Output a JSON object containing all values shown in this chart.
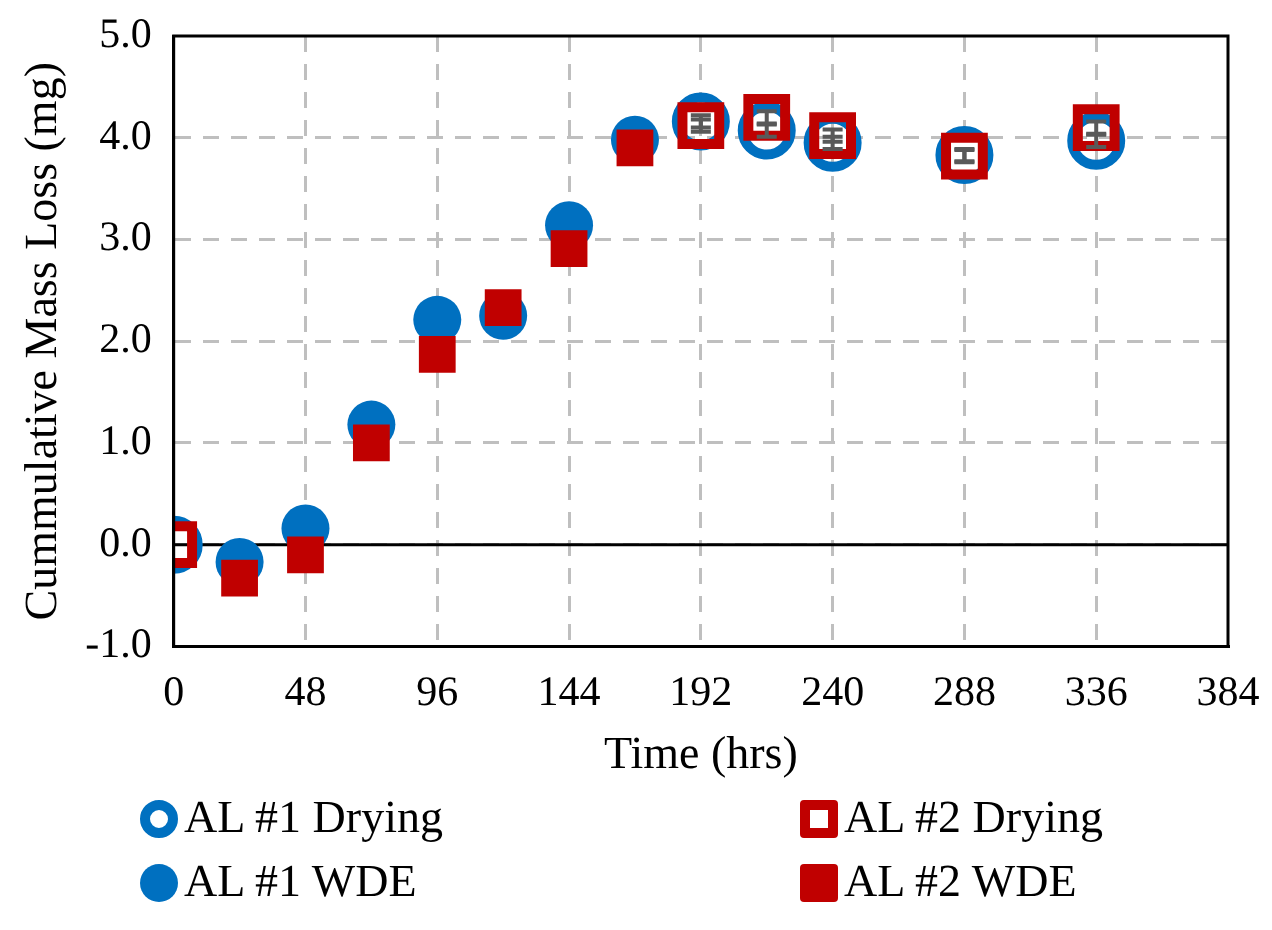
{
  "chart_data": {
    "type": "scatter",
    "xlabel": "Time (hrs)",
    "ylabel": "Cummulative Mass Loss (mg)",
    "xlim": [
      0,
      384
    ],
    "xticks": [
      0,
      48,
      96,
      144,
      192,
      240,
      288,
      336,
      384
    ],
    "ylim": [
      -1,
      5
    ],
    "yticks": [
      {
        "value": -1,
        "label": "-1.0"
      },
      {
        "value": 0,
        "label": "0.0"
      },
      {
        "value": 1,
        "label": "1.0"
      },
      {
        "value": 2,
        "label": "2.0"
      },
      {
        "value": 3,
        "label": "3.0"
      },
      {
        "value": 4,
        "label": "4.0"
      },
      {
        "value": 5,
        "label": "5.0"
      }
    ],
    "grid": true,
    "legend": "bottom",
    "ref_lines": [
      {
        "axis": "y",
        "value": 0,
        "color": "#000000"
      }
    ],
    "series": [
      {
        "name": "AL #1 Drying",
        "color": "#0070c0",
        "marker": "circle",
        "x": [
          0,
          192,
          216,
          240,
          288,
          336
        ],
        "values": [
          0,
          4.16,
          4.07,
          3.95,
          3.83,
          3.97
        ],
        "errors": [
          null,
          0.06,
          0.06,
          0.06,
          0.06,
          0.06
        ]
      },
      {
        "name": "AL #2 Drying",
        "color": "#c00000",
        "marker": "square",
        "x": [
          0,
          192,
          216,
          240,
          288,
          336
        ],
        "values": [
          0,
          4.12,
          4.2,
          4.02,
          3.82,
          4.1
        ],
        "errors": [
          null,
          0.06,
          0.06,
          0.06,
          0.06,
          0.06
        ]
      },
      {
        "name": "AL #1 WDE",
        "color": "#0070c0",
        "marker": "circle",
        "x": [
          24,
          48,
          72,
          96,
          120,
          144,
          168
        ],
        "values": [
          -0.17,
          0.16,
          1.18,
          2.21,
          2.25,
          3.14,
          3.98
        ]
      },
      {
        "name": "AL #2 WDE",
        "color": "#c00000",
        "marker": "square",
        "x": [
          24,
          48,
          72,
          96,
          120,
          144,
          168
        ],
        "values": [
          -0.33,
          -0.1,
          1.0,
          1.87,
          2.33,
          2.91,
          3.9
        ]
      }
    ]
  }
}
